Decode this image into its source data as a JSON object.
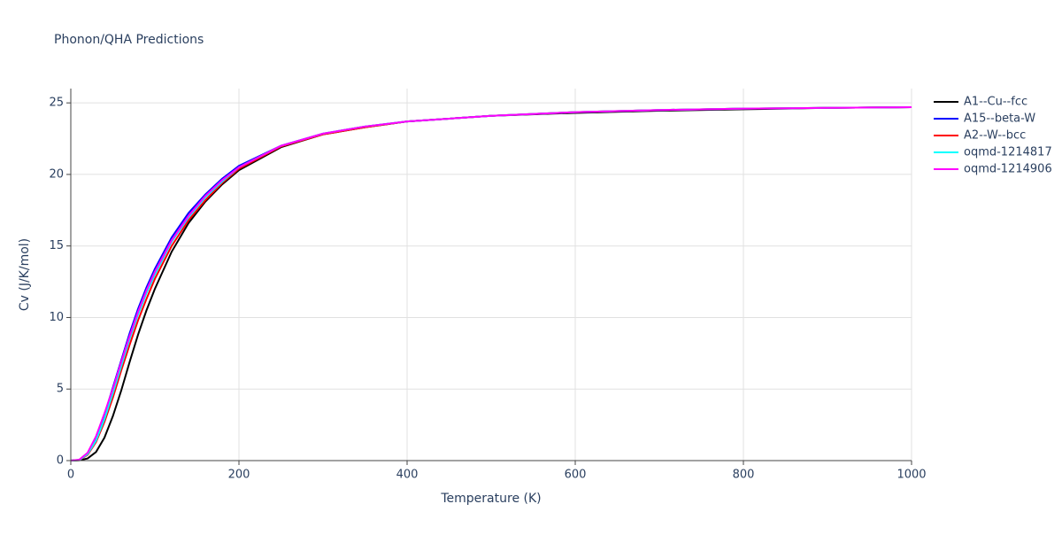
{
  "chart_data": {
    "type": "line",
    "title": "Phonon/QHA Predictions",
    "x_label": "Temperature (K)",
    "y_label": "Cv (J/K/mol)",
    "x": [
      0,
      10,
      20,
      30,
      40,
      50,
      60,
      70,
      80,
      90,
      100,
      120,
      140,
      160,
      180,
      200,
      250,
      300,
      350,
      400,
      500,
      600,
      700,
      800,
      900,
      1000
    ],
    "series": [
      {
        "name": "A1--Cu--fcc",
        "color": "#000000",
        "values": [
          0,
          0.02,
          0.15,
          0.6,
          1.6,
          3.1,
          4.9,
          6.9,
          8.8,
          10.5,
          12.0,
          14.6,
          16.6,
          18.1,
          19.3,
          20.3,
          21.9,
          22.8,
          23.3,
          23.7,
          24.1,
          24.3,
          24.45,
          24.55,
          24.65,
          24.7
        ]
      },
      {
        "name": "A15--beta-W",
        "color": "#0000ff",
        "values": [
          0,
          0.05,
          0.5,
          1.6,
          3.2,
          5.1,
          7.0,
          8.9,
          10.6,
          12.1,
          13.4,
          15.6,
          17.3,
          18.6,
          19.7,
          20.6,
          22.0,
          22.85,
          23.35,
          23.7,
          24.1,
          24.35,
          24.5,
          24.6,
          24.65,
          24.7
        ]
      },
      {
        "name": "A2--W--bcc",
        "color": "#ff0000",
        "values": [
          0,
          0.04,
          0.4,
          1.3,
          2.7,
          4.4,
          6.3,
          8.1,
          9.8,
          11.3,
          12.7,
          15.0,
          16.8,
          18.2,
          19.4,
          20.4,
          21.95,
          22.8,
          23.3,
          23.7,
          24.1,
          24.35,
          24.5,
          24.6,
          24.65,
          24.7
        ]
      },
      {
        "name": "oqmd-1214817",
        "color": "#00ffff",
        "values": [
          0,
          0.04,
          0.45,
          1.4,
          2.9,
          4.7,
          6.6,
          8.5,
          10.2,
          11.7,
          13.0,
          15.3,
          17.0,
          18.4,
          19.5,
          20.5,
          22.0,
          22.85,
          23.35,
          23.7,
          24.1,
          24.35,
          24.5,
          24.6,
          24.65,
          24.7
        ]
      },
      {
        "name": "oqmd-1214906",
        "color": "#ff00ff",
        "values": [
          0,
          0.06,
          0.55,
          1.7,
          3.3,
          5.0,
          6.9,
          8.7,
          10.4,
          11.9,
          13.2,
          15.4,
          17.1,
          18.5,
          19.6,
          20.5,
          22.0,
          22.85,
          23.35,
          23.7,
          24.1,
          24.35,
          24.5,
          24.6,
          24.65,
          24.7
        ]
      }
    ],
    "xlim": [
      0,
      1000
    ],
    "xticks": [
      0,
      200,
      400,
      600,
      800,
      1000
    ],
    "ylim": [
      0,
      26
    ],
    "yticks": [
      0,
      5,
      10,
      15,
      20,
      25
    ],
    "grid": true
  }
}
